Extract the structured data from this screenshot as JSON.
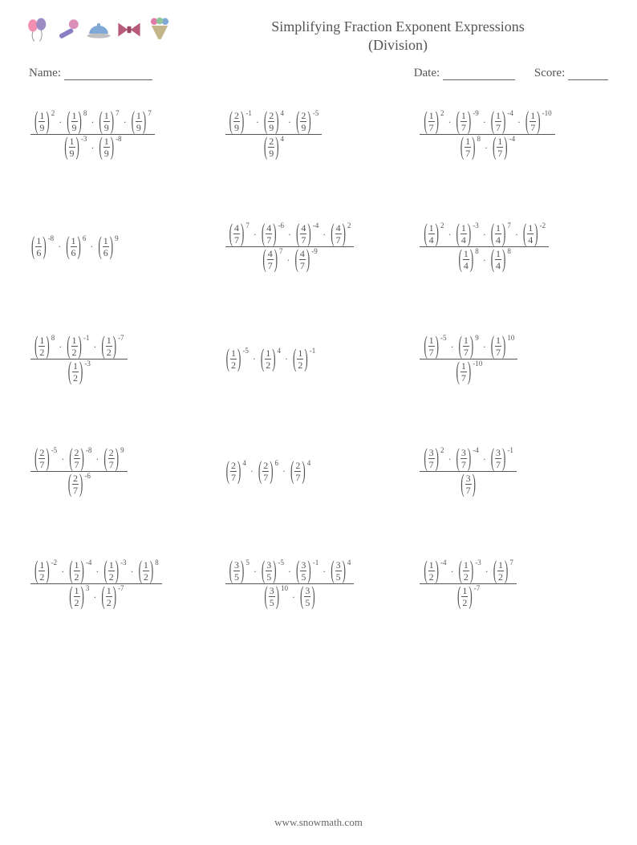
{
  "title_line1": "Simplifying Fraction Exponent Expressions",
  "title_line2": "(Division)",
  "labels": {
    "name": "Name:",
    "date": "Date:",
    "score": "Score:"
  },
  "blanks": {
    "name_w": 110,
    "date_w": 90,
    "score_w": 50
  },
  "footer": "www.snowmath.com",
  "icon_colors": {
    "balloon1": "#f28fb1",
    "balloon2": "#9b8cc4",
    "mic_handle": "#8a7fc2",
    "mic_head": "#d98fb8",
    "dish_lid": "#7fa8d6",
    "dish_base": "#c0c0c0",
    "bow": "#b85a7a",
    "cone_top": "#e07aa8",
    "cone_mid": "#8fc49d",
    "cone_bot": "#c4b48a"
  },
  "problems": [
    {
      "num": [
        [
          "1",
          "9",
          "2"
        ],
        [
          "1",
          "9",
          "8"
        ],
        [
          "1",
          "9",
          "7"
        ],
        [
          "1",
          "9",
          "7"
        ]
      ],
      "den": [
        [
          "1",
          "9",
          "-3"
        ],
        [
          "1",
          "9",
          "-8"
        ]
      ]
    },
    {
      "num": [
        [
          "2",
          "9",
          "-1"
        ],
        [
          "2",
          "9",
          "4"
        ],
        [
          "2",
          "9",
          "-5"
        ]
      ],
      "den": [
        [
          "2",
          "9",
          "4"
        ]
      ]
    },
    {
      "num": [
        [
          "1",
          "7",
          "2"
        ],
        [
          "1",
          "7",
          "-9"
        ],
        [
          "1",
          "7",
          "-4"
        ],
        [
          "1",
          "7",
          "-10"
        ]
      ],
      "den": [
        [
          "1",
          "7",
          "8"
        ],
        [
          "1",
          "7",
          "-4"
        ]
      ]
    },
    {
      "num": [
        [
          "1",
          "6",
          "-8"
        ],
        [
          "1",
          "6",
          "6"
        ],
        [
          "1",
          "6",
          "9"
        ]
      ],
      "den": null
    },
    {
      "num": [
        [
          "4",
          "7",
          "7"
        ],
        [
          "4",
          "7",
          "-6"
        ],
        [
          "4",
          "7",
          "-4"
        ],
        [
          "4",
          "7",
          "2"
        ]
      ],
      "den": [
        [
          "4",
          "7",
          "7"
        ],
        [
          "4",
          "7",
          "-9"
        ]
      ]
    },
    {
      "num": [
        [
          "1",
          "4",
          "2"
        ],
        [
          "1",
          "4",
          "-3"
        ],
        [
          "1",
          "4",
          "7"
        ],
        [
          "1",
          "4",
          "-2"
        ]
      ],
      "den": [
        [
          "1",
          "4",
          "8"
        ],
        [
          "1",
          "4",
          "8"
        ]
      ]
    },
    {
      "num": [
        [
          "1",
          "2",
          "8"
        ],
        [
          "1",
          "2",
          "-1"
        ],
        [
          "1",
          "2",
          "-7"
        ]
      ],
      "den": [
        [
          "1",
          "2",
          "-3"
        ]
      ]
    },
    {
      "num": [
        [
          "1",
          "2",
          "-5"
        ],
        [
          "1",
          "2",
          "4"
        ],
        [
          "1",
          "2",
          "-1"
        ]
      ],
      "den": null
    },
    {
      "num": [
        [
          "1",
          "7",
          "-5"
        ],
        [
          "1",
          "7",
          "9"
        ],
        [
          "1",
          "7",
          "10"
        ]
      ],
      "den": [
        [
          "1",
          "7",
          "-10"
        ]
      ]
    },
    {
      "num": [
        [
          "2",
          "7",
          "-5"
        ],
        [
          "2",
          "7",
          "-8"
        ],
        [
          "2",
          "7",
          "9"
        ]
      ],
      "den": [
        [
          "2",
          "7",
          "-6"
        ]
      ]
    },
    {
      "num": [
        [
          "2",
          "7",
          "4"
        ],
        [
          "2",
          "7",
          "6"
        ],
        [
          "2",
          "7",
          "4"
        ]
      ],
      "den": null
    },
    {
      "num": [
        [
          "3",
          "7",
          "2"
        ],
        [
          "3",
          "7",
          "-4"
        ],
        [
          "3",
          "7",
          "-1"
        ]
      ],
      "den": [
        [
          "3",
          "7",
          ""
        ]
      ]
    },
    {
      "num": [
        [
          "1",
          "2",
          "-2"
        ],
        [
          "1",
          "2",
          "-4"
        ],
        [
          "1",
          "2",
          "-3"
        ],
        [
          "1",
          "2",
          "8"
        ]
      ],
      "den": [
        [
          "1",
          "2",
          "3"
        ],
        [
          "1",
          "2",
          "-7"
        ]
      ]
    },
    {
      "num": [
        [
          "3",
          "5",
          "5"
        ],
        [
          "3",
          "5",
          "-5"
        ],
        [
          "3",
          "5",
          "-1"
        ],
        [
          "3",
          "5",
          "4"
        ]
      ],
      "den": [
        [
          "3",
          "5",
          "10"
        ],
        [
          "3",
          "5",
          ""
        ]
      ]
    },
    {
      "num": [
        [
          "1",
          "2",
          "-4"
        ],
        [
          "1",
          "2",
          "-3"
        ],
        [
          "1",
          "2",
          "7"
        ]
      ],
      "den": [
        [
          "1",
          "2",
          "-7"
        ]
      ]
    }
  ]
}
